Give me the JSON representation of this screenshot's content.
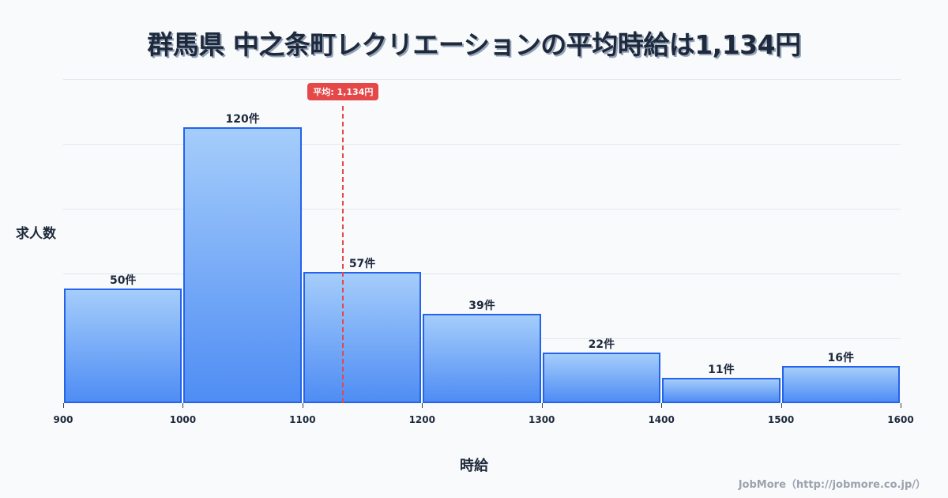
{
  "title": "群馬県 中之条町レクリエーションの平均時給は1,134円",
  "ylabel": "求人数",
  "xlabel": "時給",
  "credit": "JobMore（http://jobmore.co.jp/）",
  "mean": {
    "value": 1134,
    "label": "平均: 1,134円",
    "color": "#e54848"
  },
  "colors": {
    "bar_border": "#2563eb",
    "bar_top": "#a5cdfb",
    "bar_bottom": "#4f8df4",
    "grid": "#e2e8f0",
    "background": "#f8fafc"
  },
  "chart_data": {
    "type": "bar",
    "title": "群馬県 中之条町レクリエーションの平均時給は1,134円",
    "xlabel": "時給",
    "ylabel": "求人数",
    "bins": [
      [
        900,
        1000
      ],
      [
        1000,
        1100
      ],
      [
        1100,
        1200
      ],
      [
        1200,
        1300
      ],
      [
        1300,
        1400
      ],
      [
        1400,
        1500
      ],
      [
        1500,
        1600
      ]
    ],
    "categories": [
      "900-1000",
      "1000-1100",
      "1100-1200",
      "1200-1300",
      "1300-1400",
      "1400-1500",
      "1500-1600"
    ],
    "values": [
      50,
      120,
      57,
      39,
      22,
      11,
      16
    ],
    "value_labels": [
      "50件",
      "120件",
      "57件",
      "39件",
      "22件",
      "11件",
      "16件"
    ],
    "x_ticks": [
      "900",
      "1000",
      "1100",
      "1200",
      "1300",
      "1400",
      "1500",
      "1600"
    ],
    "xlim": [
      900,
      1600
    ],
    "ylim": [
      0,
      141
    ],
    "grid": true,
    "mean_line": {
      "x": 1134,
      "label": "平均: 1,134円"
    }
  }
}
